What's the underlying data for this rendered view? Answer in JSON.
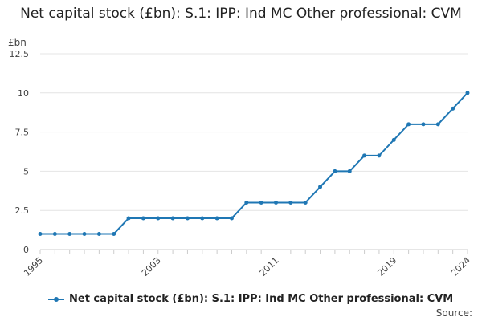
{
  "chart_data": {
    "type": "line",
    "title": "Net capital stock (£bn): S.1: IPP: Ind MC Other professional: CVM",
    "ylabel": "£bn",
    "xlabel": "",
    "ylim": [
      0,
      12.5
    ],
    "yticks": [
      "0",
      "2.5",
      "5",
      "7.5",
      "10",
      "12.5"
    ],
    "xlim": [
      1995,
      2024
    ],
    "xticks": [
      "1995",
      "2003",
      "2011",
      "2019",
      "2024"
    ],
    "grid": true,
    "legend_position": "bottom",
    "color": "#1f77b4",
    "x": [
      1995,
      1996,
      1997,
      1998,
      1999,
      2000,
      2001,
      2002,
      2003,
      2004,
      2005,
      2006,
      2007,
      2008,
      2009,
      2010,
      2011,
      2012,
      2013,
      2014,
      2015,
      2016,
      2017,
      2018,
      2019,
      2020,
      2021,
      2022,
      2023,
      2024
    ],
    "series": [
      {
        "name": "Net capital stock (£bn): S.1: IPP: Ind MC Other professional: CVM",
        "values": [
          1,
          1,
          1,
          1,
          1,
          1,
          2,
          2,
          2,
          2,
          2,
          2,
          2,
          2,
          3,
          3,
          3,
          3,
          3,
          4,
          5,
          5,
          6,
          6,
          7,
          8,
          8,
          8,
          9,
          10
        ]
      }
    ]
  },
  "source_label": "Source:"
}
